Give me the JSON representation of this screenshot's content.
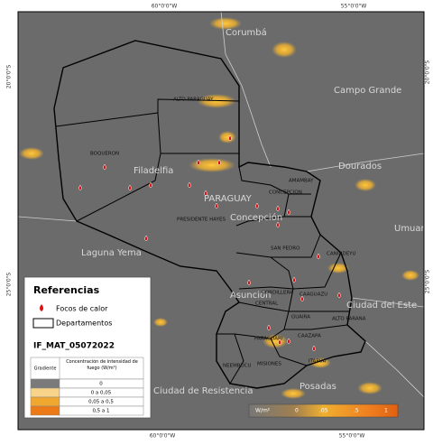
{
  "graticule": {
    "longitudes": [
      "60°0'0\"W",
      "55°0'0\"W"
    ],
    "latitudes": [
      "20°0'0\"S",
      "25°0'0\"S"
    ]
  },
  "places": [
    "Corumbá",
    "Campo Grande",
    "Dourados",
    "Filadelfia",
    "Laguna Yema",
    "Concepción",
    "Asunción",
    "Ciudad del Este",
    "Posadas",
    "Ciudad de Resistencia",
    "Umuarama"
  ],
  "country_label": "PARAGUAY",
  "departments": [
    "ALTO PARAGUAY",
    "BOQUERON",
    "PRESIDENTE HAYES",
    "CONCEPCION",
    "AMAMBAY",
    "SAN PEDRO",
    "CANINDEYU",
    "CAAGUAZU",
    "ALTO PARANA",
    "GUAIRA",
    "CAAZAPA",
    "PARAGUARI",
    "NEEMBUCU",
    "MISIONES",
    "ITAPUA",
    "CORDILLERA",
    "CENTRAL"
  ],
  "legend": {
    "title": "Referencias",
    "items": [
      "Focos de calor",
      "Departamentos"
    ],
    "layer": "IF_MAT_05072022",
    "table": {
      "headers": [
        "Gradiente",
        "Concentración de intensidad de fuego (W/m²)"
      ],
      "rows": [
        "0",
        "0 a 0,05",
        "0,05 a 0,5",
        "0,5 a 1"
      ]
    }
  },
  "colorbar": {
    "unit": "W/m²",
    "labels": [
      "0",
      ".05",
      ".5",
      "1"
    ]
  }
}
